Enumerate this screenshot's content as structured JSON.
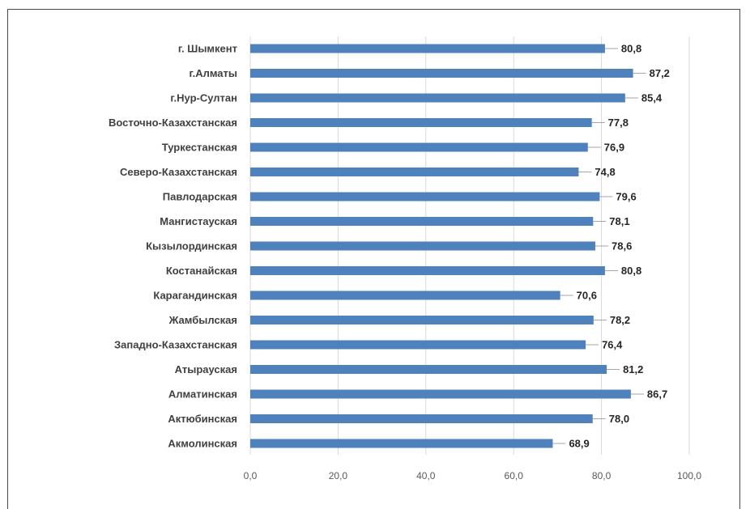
{
  "chart_data": {
    "type": "bar",
    "orientation": "horizontal",
    "title": "",
    "xlabel": "",
    "ylabel": "",
    "categories": [
      "г. Шымкент",
      "г.Алматы",
      "г.Нур-Султан",
      "Восточно-Казахстанская",
      "Туркестанская",
      "Северо-Казахстанская",
      "Павлодарская",
      "Мангистауская",
      "Кызылординская",
      "Костанайская",
      "Карагандинская",
      "Жамбылская",
      "Западно-Казахстанская",
      "Атырауская",
      "Алматинская",
      "Актюбинская",
      "Акмолинская"
    ],
    "values": [
      80.8,
      87.2,
      85.4,
      77.8,
      76.9,
      74.8,
      79.6,
      78.1,
      78.6,
      80.8,
      70.6,
      78.2,
      76.4,
      81.2,
      86.7,
      78.0,
      68.9
    ],
    "value_labels": [
      "80,8",
      "87,2",
      "85,4",
      "77,8",
      "76,9",
      "74,8",
      "79,6",
      "78,1",
      "78,6",
      "80,8",
      "70,6",
      "78,2",
      "76,4",
      "81,2",
      "86,7",
      "78,0",
      "68,9"
    ],
    "xlim": [
      0,
      100
    ],
    "xticks": [
      0,
      20,
      40,
      60,
      80,
      100
    ],
    "xtick_labels": [
      "0,0",
      "20,0",
      "40,0",
      "60,0",
      "80,0",
      "100,0"
    ],
    "grid": "vertical",
    "legend": "none",
    "colors": {
      "bar": "#4f81bd",
      "grid": "#d9d9d9",
      "leader": "#a6a6a6"
    }
  }
}
